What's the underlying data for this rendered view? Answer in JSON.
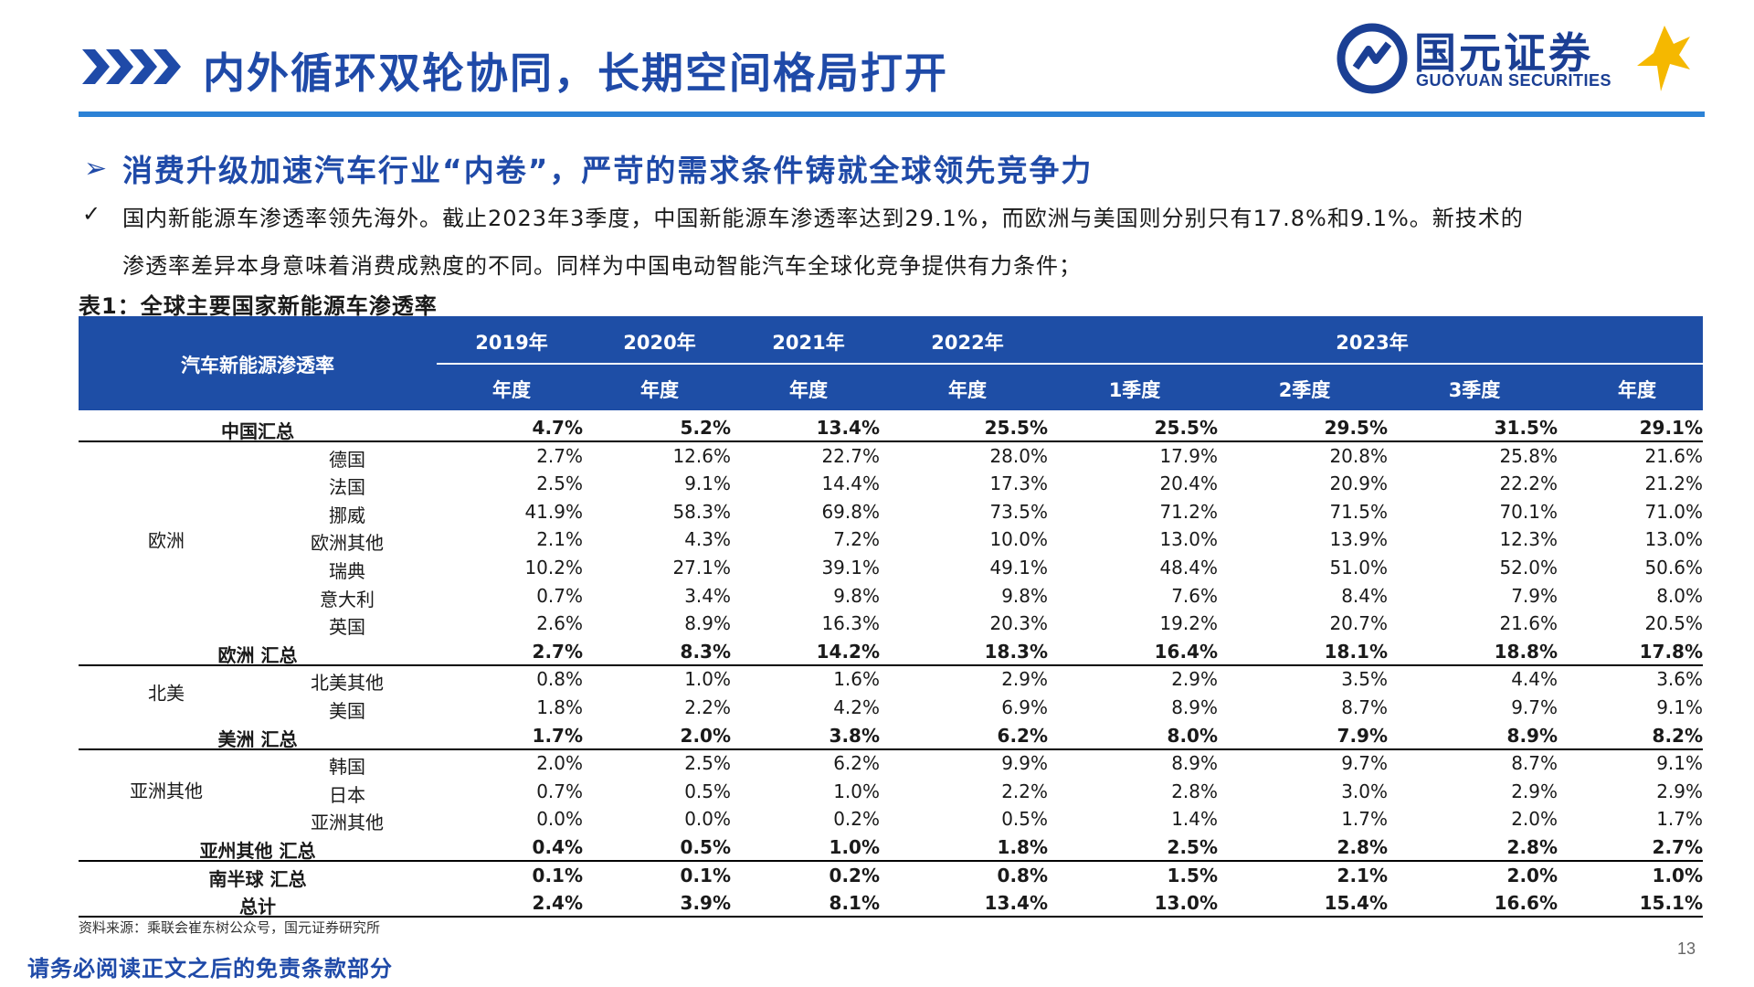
{
  "header": {
    "title": "内外循环双轮协同，长期空间格局打开",
    "logo_cn": "国元证券",
    "logo_en": "GUOYUAN SECURITIES"
  },
  "subtitle": "消费升级加速汽车行业“内卷”，严苛的需求条件铸就全球领先竞争力",
  "paragraph": {
    "line1": "国内新能源车渗透率领先海外。截止2023年3季度，中国新能源车渗透率达到29.1%，而欧洲与美国则分别只有17.8%和9.1%。新技术的",
    "line2": "渗透率差异本身意味着消费成熟度的不同。同样为中国电动智能汽车全球化竞争提供有力条件；"
  },
  "table": {
    "title": "表1：全球主要国家新能源车渗透率",
    "corner_label": "汽车新能源渗透率",
    "years": [
      "2019年",
      "2020年",
      "2021年",
      "2022年",
      "2023年"
    ],
    "periods": [
      "年度",
      "年度",
      "年度",
      "年度",
      "1季度",
      "2季度",
      "3季度",
      "年度"
    ],
    "regions": {
      "europe": "欧洲",
      "north_america": "北美",
      "asia_other": "亚洲其他"
    },
    "rows": [
      {
        "name": "中国汇总",
        "bold": true,
        "values": [
          "4.7%",
          "5.2%",
          "13.4%",
          "25.5%",
          "25.5%",
          "29.5%",
          "31.5%",
          "29.1%"
        ]
      },
      {
        "name": "德国",
        "bold": false,
        "values": [
          "2.7%",
          "12.6%",
          "22.7%",
          "28.0%",
          "17.9%",
          "20.8%",
          "25.8%",
          "21.6%"
        ]
      },
      {
        "name": "法国",
        "bold": false,
        "values": [
          "2.5%",
          "9.1%",
          "14.4%",
          "17.3%",
          "20.4%",
          "20.9%",
          "22.2%",
          "21.2%"
        ]
      },
      {
        "name": "挪威",
        "bold": false,
        "values": [
          "41.9%",
          "58.3%",
          "69.8%",
          "73.5%",
          "71.2%",
          "71.5%",
          "70.1%",
          "71.0%"
        ]
      },
      {
        "name": "欧洲其他",
        "bold": false,
        "values": [
          "2.1%",
          "4.3%",
          "7.2%",
          "10.0%",
          "13.0%",
          "13.9%",
          "12.3%",
          "13.0%"
        ]
      },
      {
        "name": "瑞典",
        "bold": false,
        "values": [
          "10.2%",
          "27.1%",
          "39.1%",
          "49.1%",
          "48.4%",
          "51.0%",
          "52.0%",
          "50.6%"
        ]
      },
      {
        "name": "意大利",
        "bold": false,
        "values": [
          "0.7%",
          "3.4%",
          "9.8%",
          "9.8%",
          "7.6%",
          "8.4%",
          "7.9%",
          "8.0%"
        ]
      },
      {
        "name": "英国",
        "bold": false,
        "values": [
          "2.6%",
          "8.9%",
          "16.3%",
          "20.3%",
          "19.2%",
          "20.7%",
          "21.6%",
          "20.5%"
        ]
      },
      {
        "name": "欧洲 汇总",
        "bold": true,
        "values": [
          "2.7%",
          "8.3%",
          "14.2%",
          "18.3%",
          "16.4%",
          "18.1%",
          "18.8%",
          "17.8%"
        ]
      },
      {
        "name": "北美其他",
        "bold": false,
        "values": [
          "0.8%",
          "1.0%",
          "1.6%",
          "2.9%",
          "2.9%",
          "3.5%",
          "4.4%",
          "3.6%"
        ]
      },
      {
        "name": "美国",
        "bold": false,
        "values": [
          "1.8%",
          "2.2%",
          "4.2%",
          "6.9%",
          "8.9%",
          "8.7%",
          "9.7%",
          "9.1%"
        ]
      },
      {
        "name": "美洲 汇总",
        "bold": true,
        "values": [
          "1.7%",
          "2.0%",
          "3.8%",
          "6.2%",
          "8.0%",
          "7.9%",
          "8.9%",
          "8.2%"
        ]
      },
      {
        "name": "韩国",
        "bold": false,
        "values": [
          "2.0%",
          "2.5%",
          "6.2%",
          "9.9%",
          "8.9%",
          "9.7%",
          "8.7%",
          "9.1%"
        ]
      },
      {
        "name": "日本",
        "bold": false,
        "values": [
          "0.7%",
          "0.5%",
          "1.0%",
          "2.2%",
          "2.8%",
          "3.0%",
          "2.9%",
          "2.9%"
        ]
      },
      {
        "name": "亚洲其他",
        "bold": false,
        "values": [
          "0.0%",
          "0.0%",
          "0.2%",
          "0.5%",
          "1.4%",
          "1.7%",
          "2.0%",
          "1.7%"
        ]
      },
      {
        "name": "亚州其他 汇总",
        "bold": true,
        "values": [
          "0.4%",
          "0.5%",
          "1.0%",
          "1.8%",
          "2.5%",
          "2.8%",
          "2.8%",
          "2.7%"
        ]
      },
      {
        "name": "南半球 汇总",
        "bold": true,
        "values": [
          "0.1%",
          "0.1%",
          "0.2%",
          "0.8%",
          "1.5%",
          "2.1%",
          "2.0%",
          "1.0%"
        ]
      },
      {
        "name": "总计",
        "bold": true,
        "values": [
          "2.4%",
          "3.9%",
          "8.1%",
          "13.4%",
          "13.0%",
          "15.4%",
          "16.6%",
          "15.1%"
        ]
      }
    ]
  },
  "source": "资料来源：乘联会崔东树公众号，国元证券研究所",
  "disclaimer": "请务必阅读正文之后的免责条款部分",
  "page_number": "13",
  "colors": {
    "brand_blue": "#1f4aa8",
    "header_blue": "#1e4ea6",
    "rule_blue": "#2c82d6",
    "logo_gold": "#f5b800"
  }
}
